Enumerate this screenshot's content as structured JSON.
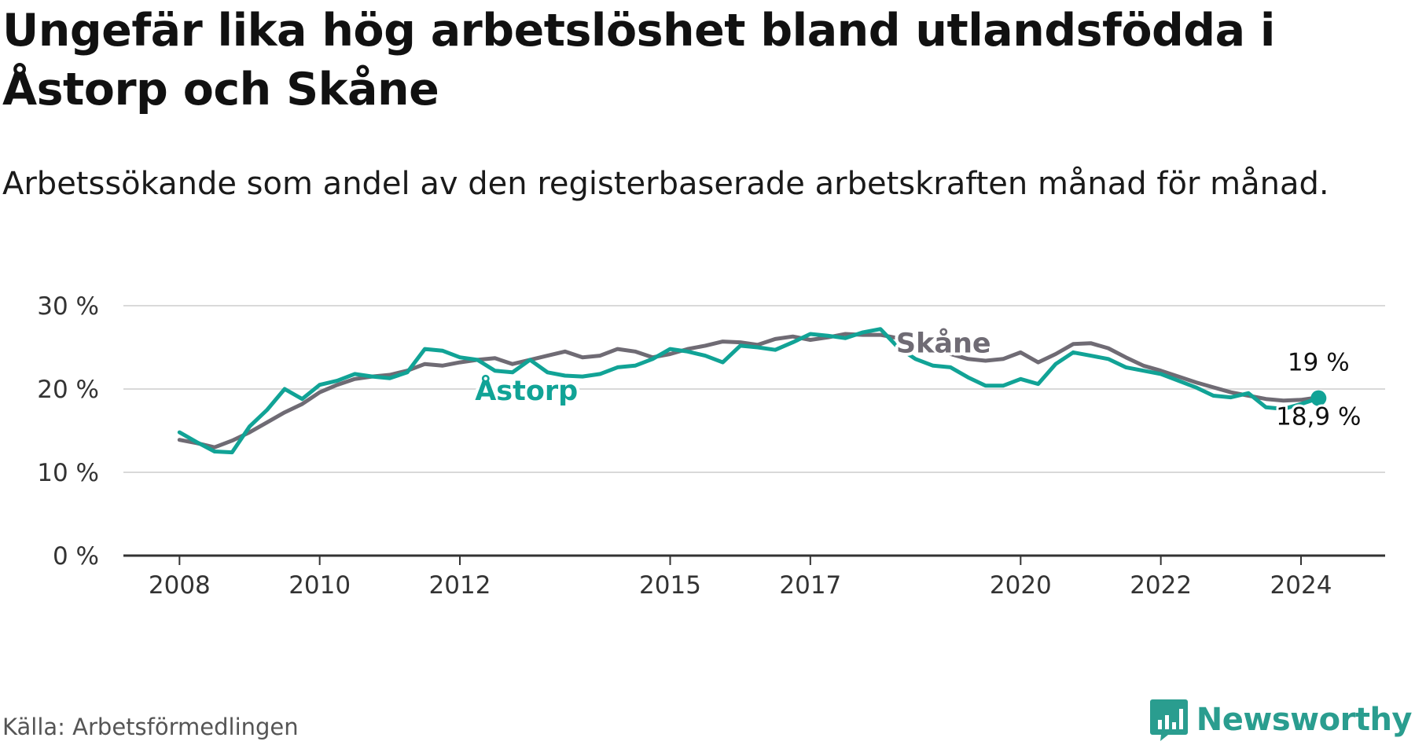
{
  "title": "Ungefär lika hög arbetslöshet bland utlandsfödda i Åstorp och Skåne",
  "subtitle": "Arbetssökande som andel av den registerbaserade arbetskraften månad för månad.",
  "source": "Källa: Arbetsförmedlingen",
  "brand": {
    "name": "Newsworthy",
    "icon": "newsworthy-logo-icon"
  },
  "colors": {
    "astorp": "#11a396",
    "skane": "#6f6b74",
    "grid": "#d9d9d9",
    "axis": "#333333",
    "brand": "#2a9d8f"
  },
  "chart_data": {
    "type": "line",
    "title": "Ungefär lika hög arbetslöshet bland utlandsfödda i Åstorp och Skåne",
    "xlabel": "",
    "ylabel": "",
    "x_range": [
      2007.2,
      2025.2
    ],
    "ylim": [
      0,
      30
    ],
    "y_ticks": [
      0,
      10,
      20,
      30
    ],
    "y_tick_labels": [
      "0 %",
      "10 %",
      "20 %",
      "30 %"
    ],
    "x_ticks": [
      2008,
      2010,
      2012,
      2015,
      2017,
      2020,
      2022,
      2024
    ],
    "x_tick_labels": [
      "2008",
      "2010",
      "2012",
      "2015",
      "2017",
      "2020",
      "2022",
      "2024"
    ],
    "grid": true,
    "series": [
      {
        "name": "Skåne",
        "label": "Skåne",
        "end_label": "19 %",
        "end_value": 19,
        "points": [
          [
            2008.0,
            13.9
          ],
          [
            2008.25,
            13.5
          ],
          [
            2008.5,
            13.0
          ],
          [
            2008.75,
            13.8
          ],
          [
            2009.0,
            14.8
          ],
          [
            2009.25,
            16.0
          ],
          [
            2009.5,
            17.2
          ],
          [
            2009.75,
            18.2
          ],
          [
            2010.0,
            19.6
          ],
          [
            2010.25,
            20.5
          ],
          [
            2010.5,
            21.2
          ],
          [
            2010.75,
            21.5
          ],
          [
            2011.0,
            21.7
          ],
          [
            2011.25,
            22.2
          ],
          [
            2011.5,
            23.0
          ],
          [
            2011.75,
            22.8
          ],
          [
            2012.0,
            23.2
          ],
          [
            2012.25,
            23.5
          ],
          [
            2012.5,
            23.7
          ],
          [
            2012.75,
            23.0
          ],
          [
            2013.0,
            23.5
          ],
          [
            2013.25,
            24.0
          ],
          [
            2013.5,
            24.5
          ],
          [
            2013.75,
            23.8
          ],
          [
            2014.0,
            24.0
          ],
          [
            2014.25,
            24.8
          ],
          [
            2014.5,
            24.5
          ],
          [
            2014.75,
            23.8
          ],
          [
            2015.0,
            24.2
          ],
          [
            2015.25,
            24.8
          ],
          [
            2015.5,
            25.2
          ],
          [
            2015.75,
            25.7
          ],
          [
            2016.0,
            25.6
          ],
          [
            2016.25,
            25.3
          ],
          [
            2016.5,
            26.0
          ],
          [
            2016.75,
            26.3
          ],
          [
            2017.0,
            25.9
          ],
          [
            2017.25,
            26.2
          ],
          [
            2017.5,
            26.6
          ],
          [
            2017.75,
            26.5
          ],
          [
            2018.0,
            26.5
          ],
          [
            2018.25,
            26.1
          ],
          [
            2018.5,
            25.5
          ],
          [
            2018.75,
            24.8
          ],
          [
            2019.0,
            24.2
          ],
          [
            2019.25,
            23.6
          ],
          [
            2019.5,
            23.4
          ],
          [
            2019.75,
            23.6
          ],
          [
            2020.0,
            24.4
          ],
          [
            2020.25,
            23.2
          ],
          [
            2020.5,
            24.2
          ],
          [
            2020.75,
            25.4
          ],
          [
            2021.0,
            25.5
          ],
          [
            2021.25,
            24.9
          ],
          [
            2021.5,
            23.8
          ],
          [
            2021.75,
            22.8
          ],
          [
            2022.0,
            22.2
          ],
          [
            2022.25,
            21.5
          ],
          [
            2022.5,
            20.8
          ],
          [
            2022.75,
            20.2
          ],
          [
            2023.0,
            19.6
          ],
          [
            2023.25,
            19.2
          ],
          [
            2023.5,
            18.8
          ],
          [
            2023.75,
            18.6
          ],
          [
            2024.0,
            18.7
          ],
          [
            2024.25,
            19.0
          ]
        ]
      },
      {
        "name": "Åstorp",
        "label": "Åstorp",
        "end_label": "18,9 %",
        "end_value": 18.9,
        "points": [
          [
            2008.0,
            14.8
          ],
          [
            2008.25,
            13.6
          ],
          [
            2008.5,
            12.5
          ],
          [
            2008.75,
            12.4
          ],
          [
            2009.0,
            15.5
          ],
          [
            2009.25,
            17.5
          ],
          [
            2009.5,
            20.0
          ],
          [
            2009.75,
            18.8
          ],
          [
            2010.0,
            20.5
          ],
          [
            2010.25,
            21.0
          ],
          [
            2010.5,
            21.8
          ],
          [
            2010.75,
            21.5
          ],
          [
            2011.0,
            21.3
          ],
          [
            2011.25,
            22.0
          ],
          [
            2011.5,
            24.8
          ],
          [
            2011.75,
            24.6
          ],
          [
            2012.0,
            23.8
          ],
          [
            2012.25,
            23.5
          ],
          [
            2012.5,
            22.2
          ],
          [
            2012.75,
            22.0
          ],
          [
            2013.0,
            23.5
          ],
          [
            2013.25,
            22.0
          ],
          [
            2013.5,
            21.6
          ],
          [
            2013.75,
            21.5
          ],
          [
            2014.0,
            21.8
          ],
          [
            2014.25,
            22.6
          ],
          [
            2014.5,
            22.8
          ],
          [
            2014.75,
            23.6
          ],
          [
            2015.0,
            24.8
          ],
          [
            2015.25,
            24.5
          ],
          [
            2015.5,
            24.0
          ],
          [
            2015.75,
            23.2
          ],
          [
            2016.0,
            25.2
          ],
          [
            2016.25,
            25.0
          ],
          [
            2016.5,
            24.7
          ],
          [
            2016.75,
            25.6
          ],
          [
            2017.0,
            26.6
          ],
          [
            2017.25,
            26.4
          ],
          [
            2017.5,
            26.1
          ],
          [
            2017.75,
            26.8
          ],
          [
            2018.0,
            27.2
          ],
          [
            2018.25,
            25.0
          ],
          [
            2018.5,
            23.6
          ],
          [
            2018.75,
            22.8
          ],
          [
            2019.0,
            22.6
          ],
          [
            2019.25,
            21.4
          ],
          [
            2019.5,
            20.4
          ],
          [
            2019.75,
            20.4
          ],
          [
            2020.0,
            21.2
          ],
          [
            2020.25,
            20.6
          ],
          [
            2020.5,
            23.0
          ],
          [
            2020.75,
            24.4
          ],
          [
            2021.0,
            24.0
          ],
          [
            2021.25,
            23.6
          ],
          [
            2021.5,
            22.6
          ],
          [
            2021.75,
            22.2
          ],
          [
            2022.0,
            21.8
          ],
          [
            2022.25,
            21.0
          ],
          [
            2022.5,
            20.2
          ],
          [
            2022.75,
            19.2
          ],
          [
            2023.0,
            19.0
          ],
          [
            2023.25,
            19.5
          ],
          [
            2023.5,
            17.8
          ],
          [
            2023.75,
            17.6
          ],
          [
            2024.0,
            18.2
          ],
          [
            2024.25,
            18.9
          ]
        ]
      }
    ]
  }
}
